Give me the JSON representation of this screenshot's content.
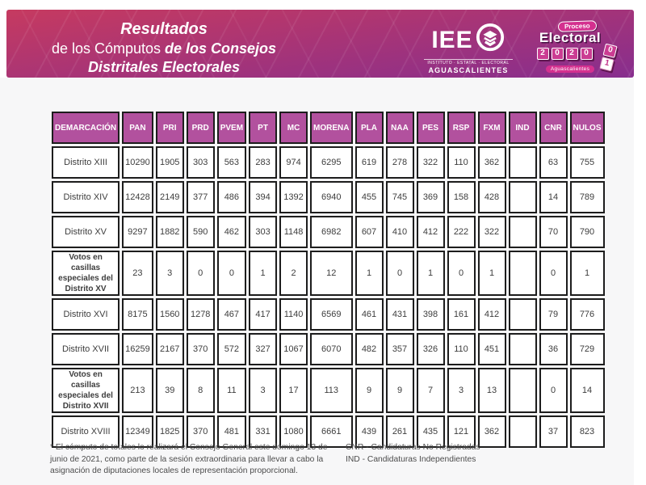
{
  "banner": {
    "title_line1": "Resultados",
    "title_line2_regular": "de los Cómputos ",
    "title_line2_bold": "de los Consejos",
    "title_line3": "Distritales Electorales",
    "gradient_top": "#c63a60",
    "gradient_bottom": "#872e8e"
  },
  "logos": {
    "iee": {
      "acronym": "IEE",
      "subtitle": "INSTITUTO · ESTATAL · ELECTORAL",
      "location": "AGUASCALIENTES"
    },
    "proceso": {
      "line1": "Proceso",
      "line2": "Electoral",
      "year_digits": [
        "2",
        "0",
        "2",
        "0"
      ],
      "side_digits": [
        "0",
        "1"
      ],
      "location": "Aguascalientes",
      "accent_color": "#d4308f"
    }
  },
  "table": {
    "header_bg": "#b2519e",
    "columns": [
      "DEMARCACIÓN",
      "PAN",
      "PRI",
      "PRD",
      "PVEM",
      "PT",
      "MC",
      "MORENA",
      "PLA",
      "NAA",
      "PES",
      "RSP",
      "FXM",
      "IND",
      "CNR",
      "NULOS"
    ],
    "rows": [
      {
        "label": "Distrito XIII",
        "bold": false,
        "values": [
          "10290",
          "1905",
          "303",
          "563",
          "283",
          "974",
          "6295",
          "619",
          "278",
          "322",
          "110",
          "362",
          "",
          "63",
          "755"
        ]
      },
      {
        "label": "Distrito XIV",
        "bold": false,
        "values": [
          "12428",
          "2149",
          "377",
          "486",
          "394",
          "1392",
          "6940",
          "455",
          "745",
          "369",
          "158",
          "428",
          "",
          "14",
          "789"
        ]
      },
      {
        "label": "Distrito XV",
        "bold": false,
        "values": [
          "9297",
          "1882",
          "590",
          "462",
          "303",
          "1148",
          "6982",
          "607",
          "410",
          "412",
          "222",
          "322",
          "",
          "70",
          "790"
        ]
      },
      {
        "label": "Votos en casillas especiales del Distrito XV",
        "bold": true,
        "values": [
          "23",
          "3",
          "0",
          "0",
          "1",
          "2",
          "12",
          "1",
          "0",
          "1",
          "0",
          "1",
          "",
          "0",
          "1"
        ]
      },
      {
        "label": "Distrito XVI",
        "bold": false,
        "values": [
          "8175",
          "1560",
          "1278",
          "467",
          "417",
          "1140",
          "6569",
          "461",
          "431",
          "398",
          "161",
          "412",
          "",
          "79",
          "776"
        ]
      },
      {
        "label": "Distrito XVII",
        "bold": false,
        "values": [
          "16259",
          "2167",
          "370",
          "572",
          "327",
          "1067",
          "6070",
          "482",
          "357",
          "326",
          "110",
          "451",
          "",
          "36",
          "729"
        ]
      },
      {
        "label": "Votos en casillas especiales del Distrito XVII",
        "bold": true,
        "values": [
          "213",
          "39",
          "8",
          "11",
          "3",
          "17",
          "113",
          "9",
          "9",
          "7",
          "3",
          "13",
          "",
          "0",
          "14"
        ]
      },
      {
        "label": "Distrito XVIII",
        "bold": false,
        "values": [
          "12349",
          "1825",
          "370",
          "481",
          "331",
          "1080",
          "6661",
          "439",
          "261",
          "435",
          "121",
          "362",
          "",
          "37",
          "823"
        ]
      }
    ]
  },
  "footnotes": {
    "left": "* El cómputo de totales lo realizará el Consejo General este domingo 13 de junio de 2021, como parte de la sesión extraordinaria para llevar a cabo la asignación de diputaciones locales de representación proporcional.",
    "right_line1": "CNR - Candidaturas No Registradas",
    "right_line2": "IND - Candidaturas Independientes"
  }
}
